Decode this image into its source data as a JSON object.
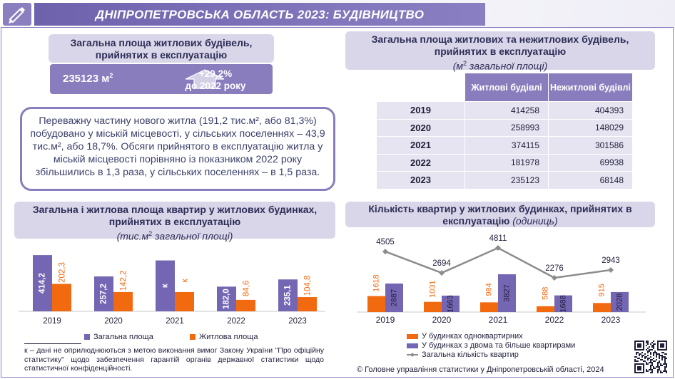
{
  "header": {
    "title": "ДНІПРОПЕТРОВСЬКА ОБЛАСТЬ 2023: БУДІВНИЦТВО",
    "logo_icon": "pen-chart-logo-icon"
  },
  "residential_area": {
    "title": "Загальна площа житлових будівель, прийнятих в експлуатацію",
    "value": "235123 м",
    "unit_sup": "2",
    "change": "+29,2%",
    "change_note": "до 2022 року",
    "arrow_icon": "up-arrow-icon"
  },
  "summary_text": "Переважну частину нового житла (191,2 тис.м², або 81,3%) побудовано у міській місцевості, у сільських поселеннях – 43,9 тис.м², або 18,7%. Обсяги прийнятого в експлуатацію житла у міській місцевості порівняно із показником 2022 року збільшились в 1,3 раза, у сільських поселеннях – в 1,5 раза.",
  "table": {
    "title": "Загальна площа житлових та нежитлових будівель, прийнятих в експлуатацію",
    "subtitle_pre": "(м",
    "subtitle_sup": "2",
    "subtitle_post": " загальної площі)",
    "col1": "Житлові будівлі",
    "col2": "Нежитлові будівлі",
    "rows": [
      {
        "year": "2019",
        "res": "414258",
        "nonres": "404393"
      },
      {
        "year": "2020",
        "res": "258993",
        "nonres": "148029"
      },
      {
        "year": "2021",
        "res": "374115",
        "nonres": "301586"
      },
      {
        "year": "2022",
        "res": "181978",
        "nonres": "69938"
      },
      {
        "year": "2023",
        "res": "235123",
        "nonres": "68148"
      }
    ]
  },
  "chart_data": [
    {
      "type": "bar",
      "title": "Загальна і житлова площа квартир у житлових будинках,  прийнятих в експлуатацію",
      "subtitle_pre": "(тис.м",
      "subtitle_sup": "2",
      "subtitle_post": " загальної площі)",
      "categories": [
        "2019",
        "2020",
        "2021",
        "2022",
        "2023"
      ],
      "series": [
        {
          "name": "Загальна площа",
          "values": [
            414.2,
            257.2,
            375.0,
            182.0,
            235.1
          ],
          "labels": [
            "414,2",
            "257,2",
            "к",
            "182,0",
            "235,1"
          ],
          "color": "#7466b3"
        },
        {
          "name": "Житлова площа",
          "values": [
            202.3,
            142.2,
            142.0,
            84.6,
            104.8
          ],
          "labels": [
            "202,3",
            "142,2",
            "к",
            "84,6",
            "104,8"
          ],
          "color": "#f26a10"
        }
      ],
      "ylim": [
        0,
        420
      ],
      "legend": "bottom"
    },
    {
      "type": "bar",
      "title": "Кількість квартир у житлових будинках, прийнятих в експлуатацію",
      "subtitle": "(одиниць)",
      "categories": [
        "2019",
        "2020",
        "2021",
        "2022",
        "2023"
      ],
      "series": [
        {
          "name": "У будинках одноквартирних",
          "values": [
            1618,
            1031,
            984,
            588,
            915
          ],
          "color": "#f26a10"
        },
        {
          "name": "У будинках з двома та більше квартирами",
          "values": [
            2887,
            1663,
            3827,
            1688,
            2028
          ],
          "color": "#7466b3"
        },
        {
          "name": "Загальна кількість квартир",
          "type": "line",
          "values": [
            4505,
            2694,
            4811,
            2276,
            2943
          ],
          "color": "#8c8c8c"
        }
      ],
      "legend": "bottom"
    }
  ],
  "footnote": "к – дані не оприлюднюються з метою виконання вимог Закону України \"Про офіційну статистику\" щодо забезпечення гарантій органів державної статистики щодо статистичної конфіденційності.",
  "copyright": "© Головне управління статистики у Дніпропетровській області, 2024",
  "colors": {
    "accent": "#8a7dbd",
    "orange": "#f26a10",
    "purple": "#7466b3",
    "head_bg": "#d9d6ea"
  }
}
